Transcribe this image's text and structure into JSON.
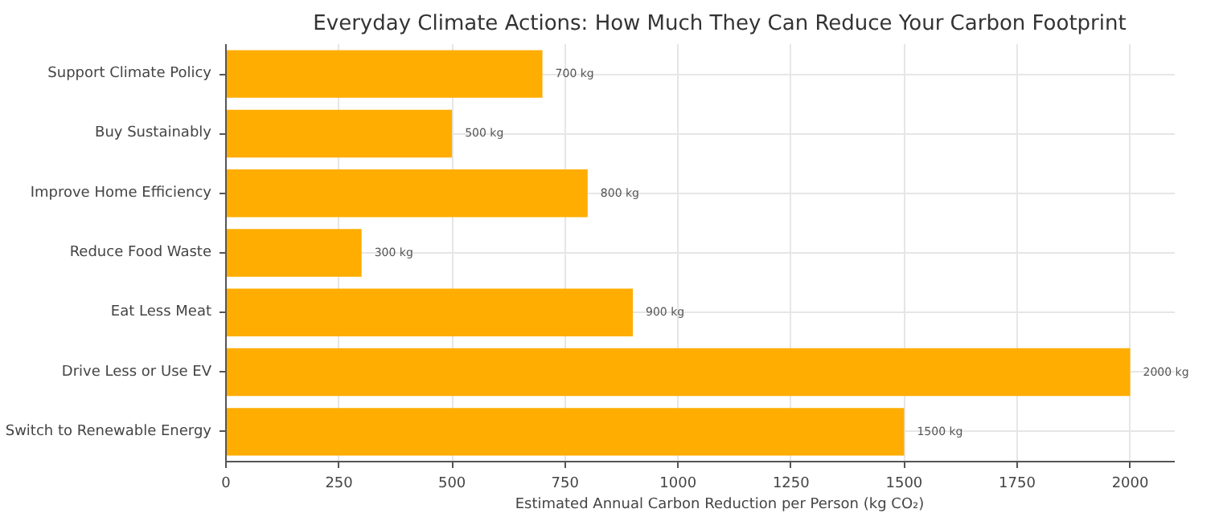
{
  "chart_data": {
    "type": "bar",
    "orientation": "horizontal",
    "title": "Everyday Climate Actions: How Much They Can Reduce Your Carbon Footprint",
    "xlabel": "Estimated Annual Carbon Reduction per Person (kg CO₂)",
    "categories": [
      "Support Climate Policy",
      "Buy Sustainably",
      "Improve Home Efficiency",
      "Reduce Food Waste",
      "Eat Less Meat",
      "Drive Less or Use EV",
      "Switch to Renewable Energy"
    ],
    "values": [
      700,
      500,
      800,
      300,
      900,
      2000,
      1500
    ],
    "value_labels": [
      "700 kg",
      "500 kg",
      "800 kg",
      "300 kg",
      "900 kg",
      "2000 kg",
      "1500 kg"
    ],
    "color": "#ffad00",
    "xlim": [
      0,
      2100
    ],
    "xticks": [
      0,
      250,
      500,
      750,
      1000,
      1250,
      1500,
      1750,
      2000
    ],
    "grid": true
  }
}
